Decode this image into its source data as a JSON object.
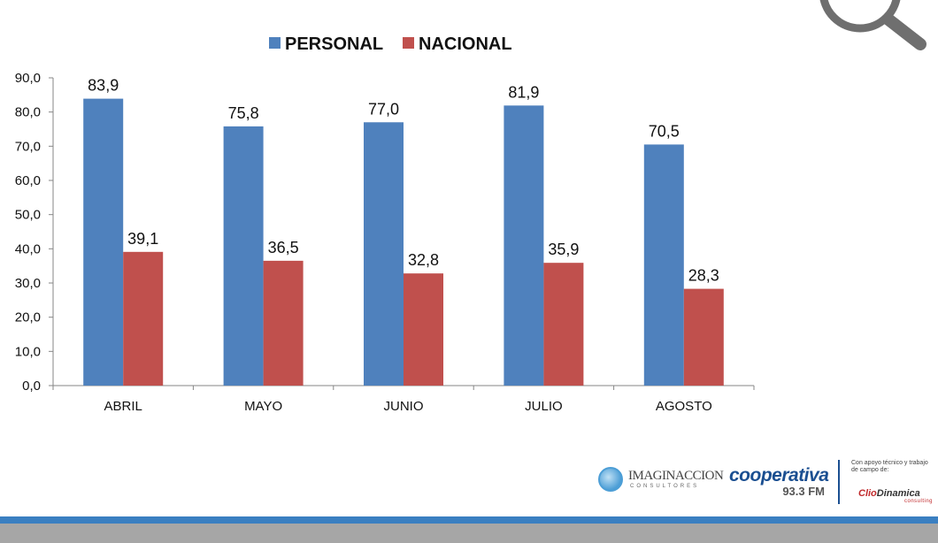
{
  "chart_data": {
    "type": "bar",
    "categories": [
      "ABRIL",
      "MAYO",
      "JUNIO",
      "JULIO",
      "AGOSTO"
    ],
    "series": [
      {
        "name": "PERSONAL",
        "values": [
          83.9,
          75.8,
          77.0,
          81.9,
          70.5
        ],
        "labels": [
          "83,9",
          "75,8",
          "77,0",
          "81,9",
          "70,5"
        ]
      },
      {
        "name": "NACIONAL",
        "values": [
          39.1,
          36.5,
          32.8,
          35.9,
          28.3
        ],
        "labels": [
          "39,1",
          "36,5",
          "32,8",
          "35,9",
          "28,3"
        ]
      }
    ],
    "ylim": [
      0,
      90
    ],
    "yticks": [
      0,
      10,
      20,
      30,
      40,
      50,
      60,
      70,
      80,
      90
    ],
    "ytick_labels": [
      "0,0",
      "10,0",
      "20,0",
      "30,0",
      "40,0",
      "50,0",
      "60,0",
      "70,0",
      "80,0",
      "90,0"
    ],
    "title": "",
    "xlabel": "",
    "ylabel": "",
    "legend": "top-center",
    "grid": false
  },
  "colors": {
    "personal": "#4f81bd",
    "nacional": "#c0504d",
    "band_blue": "#3a7fc1",
    "band_gray": "#a6a6a6"
  },
  "logos": {
    "imaginaccion": {
      "name": "IMAGINACCION",
      "sub": "CONSULTORES"
    },
    "cooperativa": {
      "name": "cooperativa",
      "freq": "93.3 FM"
    },
    "support_text": "Con apoyo técnico y trabajo de campo de:",
    "cliodinamica": {
      "name_a": "Clio",
      "name_b": "Dinamica",
      "sub": "consulting"
    }
  },
  "icons": {
    "magnifier": "magnifier-icon"
  }
}
